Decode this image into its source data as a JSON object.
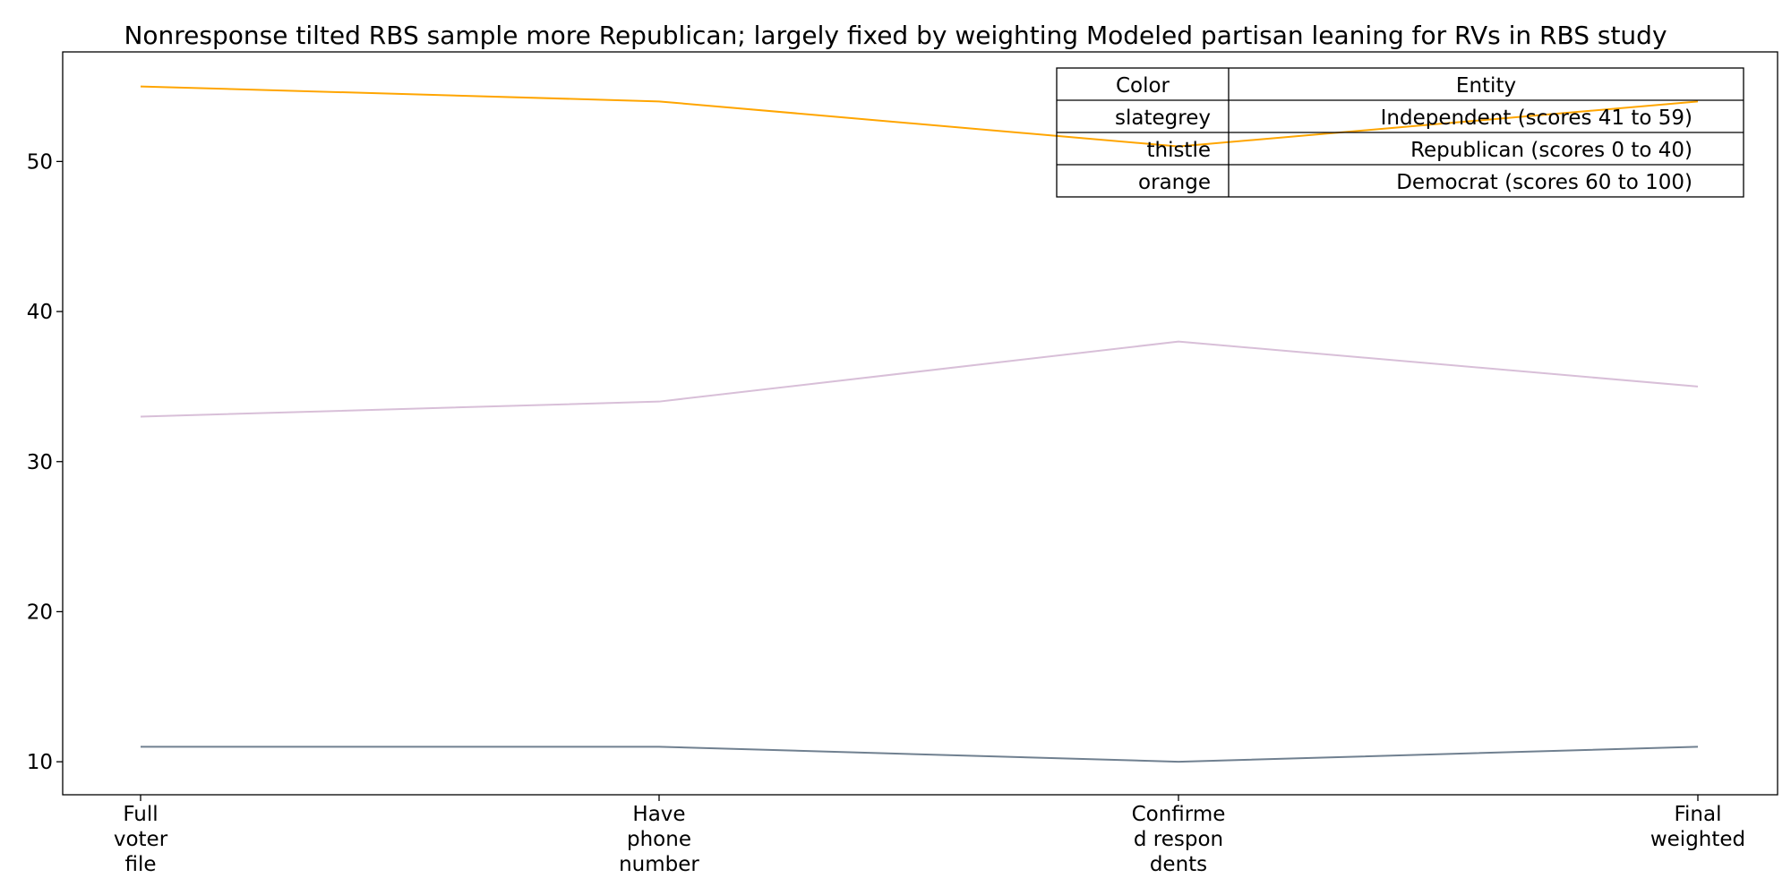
{
  "chart_data": {
    "type": "line",
    "title": "Nonresponse tilted RBS sample more Republican; largely fixed by weighting Modeled partisan leaning for RVs in RBS study",
    "categories": [
      [
        "Full",
        "voter",
        "file"
      ],
      [
        "Have",
        "phone",
        "number"
      ],
      [
        "Confirme",
        "d respon",
        "dents"
      ],
      [
        "Final",
        "weighted"
      ]
    ],
    "ylim": [
      7.8,
      57.3
    ],
    "yticks": [
      10,
      20,
      30,
      40,
      50
    ],
    "grid": false,
    "series": [
      {
        "name": "Independent (scores 41 to 59)",
        "color": "#708090",
        "values": [
          11,
          11,
          10,
          11
        ]
      },
      {
        "name": "Republican (scores 0 to 40)",
        "color": "#d8bfd8",
        "values": [
          33,
          34,
          38,
          35
        ]
      },
      {
        "name": "Democrat (scores 60 to 100)",
        "color": "#ffa500",
        "values": [
          55,
          54,
          51,
          54
        ]
      }
    ],
    "legend_table": {
      "placement": "top-right",
      "headers": [
        "Color",
        "Entity"
      ],
      "rows": [
        [
          "slategrey",
          "Independent (scores 41 to 59)"
        ],
        [
          "thistle",
          "Republican (scores 0 to 40)"
        ],
        [
          "orange",
          "Democrat (scores 60 to 100)"
        ]
      ]
    }
  }
}
